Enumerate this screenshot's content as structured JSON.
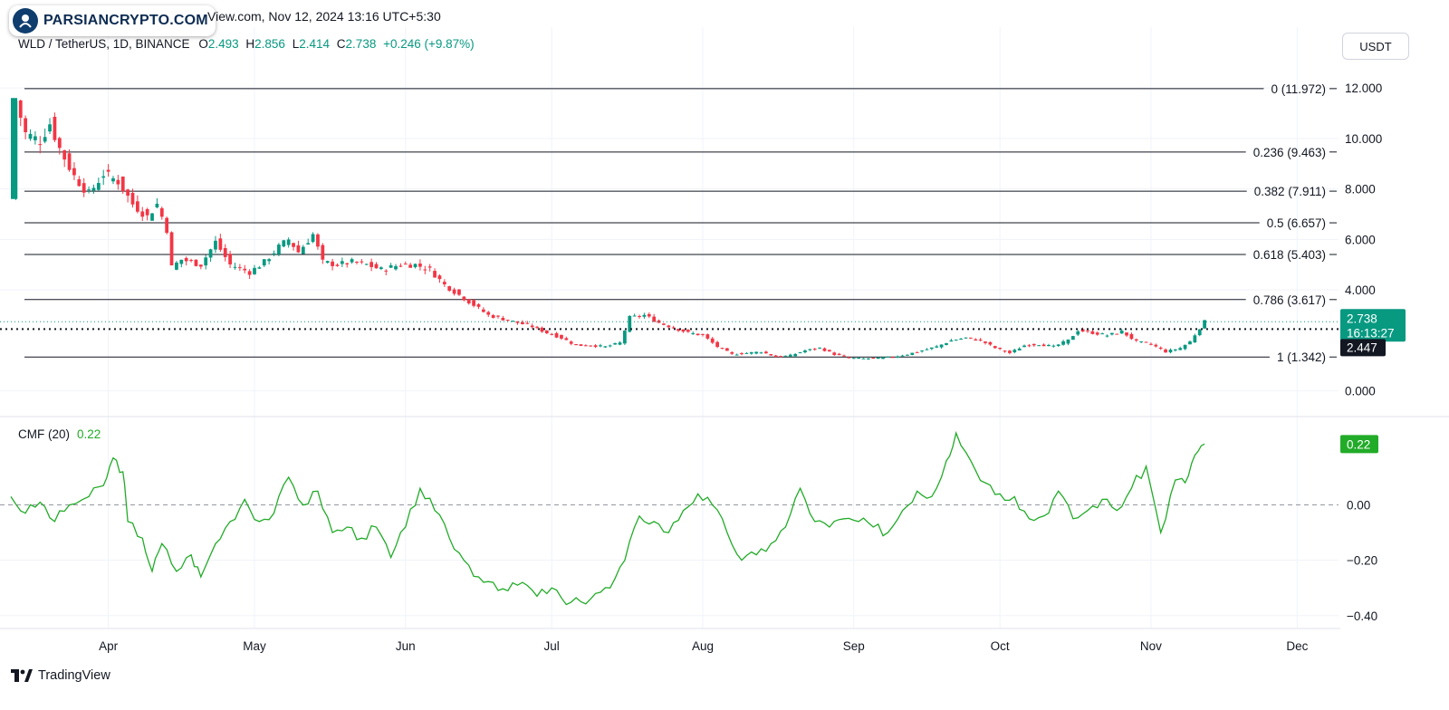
{
  "header": {
    "brand": "PARSIANCRYPTO.COM",
    "published_text": "View.com, Nov 12, 2024 13:16 UTC+5:30"
  },
  "legend": {
    "symbol": "WLD / TetherUS, 1D, BINANCE",
    "open_key": "O",
    "open": "2.493",
    "high_key": "H",
    "high": "2.856",
    "low_key": "L",
    "low": "2.414",
    "close_key": "C",
    "close": "2.738",
    "change": "+0.246 (+9.87%)"
  },
  "currency_button": "USDT",
  "footer": {
    "logo_text": "TradingView"
  },
  "colors": {
    "up": "#089981",
    "down": "#f23645",
    "cmf": "#22ab28",
    "grid": "#f0f3fa",
    "fib_line": "#131722"
  },
  "chart_data": [
    {
      "type": "candlestick",
      "title": "WLD / TetherUS, 1D, BINANCE",
      "x_ticks": [
        "Apr",
        "May",
        "Jun",
        "Jul",
        "Aug",
        "Sep",
        "Oct",
        "Nov",
        "Dec"
      ],
      "x_range": [
        "2024-03-12",
        "2024-12-08"
      ],
      "y_ticks": [
        "12.000",
        "10.000",
        "8.000",
        "6.000",
        "4.000",
        "0.000"
      ],
      "ylim": [
        -0.3,
        12.9
      ],
      "grid": true,
      "current_price_label": "2.738",
      "countdown_label": "16:13:27",
      "dotted_level_label": "2.447",
      "dotted_level": 2.447,
      "fib_levels": [
        {
          "label": "0 (11.972)",
          "value": 11.972
        },
        {
          "label": "0.236 (9.463)",
          "value": 9.463
        },
        {
          "label": "0.382 (7.911)",
          "value": 7.911
        },
        {
          "label": "0.5 (6.657)",
          "value": 6.657
        },
        {
          "label": "0.618 (5.403)",
          "value": 5.403
        },
        {
          "label": "0.786 (3.617)",
          "value": 3.617
        },
        {
          "label": "1 (1.342)",
          "value": 1.342
        }
      ],
      "close_path": [
        [
          "2024-03-12",
          7.6
        ],
        [
          "2024-03-13",
          11.5
        ],
        [
          "2024-03-15",
          10.2
        ],
        [
          "2024-03-18",
          9.9
        ],
        [
          "2024-03-20",
          10.6
        ],
        [
          "2024-03-22",
          9.6
        ],
        [
          "2024-03-25",
          8.5
        ],
        [
          "2024-03-28",
          7.8
        ],
        [
          "2024-03-31",
          8.6
        ],
        [
          "2024-04-03",
          8.3
        ],
        [
          "2024-04-06",
          7.4
        ],
        [
          "2024-04-09",
          6.9
        ],
        [
          "2024-04-11",
          7.4
        ],
        [
          "2024-04-13",
          6.4
        ],
        [
          "2024-04-14",
          4.9
        ],
        [
          "2024-04-16",
          5.2
        ],
        [
          "2024-04-20",
          5.0
        ],
        [
          "2024-04-23",
          5.9
        ],
        [
          "2024-04-26",
          5.0
        ],
        [
          "2024-04-30",
          4.7
        ],
        [
          "2024-05-03",
          5.1
        ],
        [
          "2024-05-06",
          5.7
        ],
        [
          "2024-05-08",
          6.0
        ],
        [
          "2024-05-10",
          5.5
        ],
        [
          "2024-05-13",
          6.2
        ],
        [
          "2024-05-15",
          5.1
        ],
        [
          "2024-05-18",
          5.0
        ],
        [
          "2024-05-21",
          5.1
        ],
        [
          "2024-05-24",
          5.0
        ],
        [
          "2024-05-27",
          4.8
        ],
        [
          "2024-05-31",
          5.0
        ],
        [
          "2024-06-03",
          5.0
        ],
        [
          "2024-06-06",
          4.8
        ],
        [
          "2024-06-09",
          4.2
        ],
        [
          "2024-06-12",
          3.8
        ],
        [
          "2024-06-15",
          3.4
        ],
        [
          "2024-06-18",
          3.0
        ],
        [
          "2024-06-21",
          2.85
        ],
        [
          "2024-06-24",
          2.7
        ],
        [
          "2024-06-27",
          2.55
        ],
        [
          "2024-06-30",
          2.3
        ],
        [
          "2024-07-03",
          2.1
        ],
        [
          "2024-07-06",
          1.8
        ],
        [
          "2024-07-09",
          1.8
        ],
        [
          "2024-07-12",
          1.75
        ],
        [
          "2024-07-15",
          1.9
        ],
        [
          "2024-07-17",
          2.9
        ],
        [
          "2024-07-20",
          3.0
        ],
        [
          "2024-07-23",
          2.7
        ],
        [
          "2024-07-26",
          2.5
        ],
        [
          "2024-07-29",
          2.3
        ],
        [
          "2024-08-01",
          2.2
        ],
        [
          "2024-08-04",
          1.75
        ],
        [
          "2024-08-07",
          1.45
        ],
        [
          "2024-08-10",
          1.5
        ],
        [
          "2024-08-13",
          1.55
        ],
        [
          "2024-08-16",
          1.35
        ],
        [
          "2024-08-19",
          1.4
        ],
        [
          "2024-08-22",
          1.6
        ],
        [
          "2024-08-25",
          1.7
        ],
        [
          "2024-08-28",
          1.45
        ],
        [
          "2024-08-31",
          1.3
        ],
        [
          "2024-09-03",
          1.28
        ],
        [
          "2024-09-06",
          1.3
        ],
        [
          "2024-09-09",
          1.35
        ],
        [
          "2024-09-12",
          1.45
        ],
        [
          "2024-09-15",
          1.6
        ],
        [
          "2024-09-18",
          1.75
        ],
        [
          "2024-09-21",
          2.0
        ],
        [
          "2024-09-24",
          2.1
        ],
        [
          "2024-09-27",
          2.0
        ],
        [
          "2024-09-30",
          1.7
        ],
        [
          "2024-10-03",
          1.5
        ],
        [
          "2024-10-06",
          1.8
        ],
        [
          "2024-10-09",
          1.85
        ],
        [
          "2024-10-12",
          1.75
        ],
        [
          "2024-10-15",
          2.0
        ],
        [
          "2024-10-17",
          2.4
        ],
        [
          "2024-10-20",
          2.3
        ],
        [
          "2024-10-23",
          2.2
        ],
        [
          "2024-10-26",
          2.35
        ],
        [
          "2024-10-29",
          1.95
        ],
        [
          "2024-11-01",
          1.85
        ],
        [
          "2024-11-04",
          1.55
        ],
        [
          "2024-11-07",
          1.7
        ],
        [
          "2024-11-09",
          1.95
        ],
        [
          "2024-11-11",
          2.5
        ],
        [
          "2024-11-12",
          2.738
        ]
      ]
    },
    {
      "type": "line",
      "title": "CMF (20)",
      "current_value": "0.22",
      "y_ticks": [
        "0.00",
        "−0.20",
        "−0.40"
      ],
      "ylim": [
        -0.44,
        0.28
      ],
      "zero_line": "dashed",
      "series": [
        {
          "points": [
            [
              "2024-03-12",
              0.03
            ],
            [
              "2024-03-15",
              -0.03
            ],
            [
              "2024-03-18",
              0.01
            ],
            [
              "2024-03-21",
              -0.06
            ],
            [
              "2024-03-24",
              0.0
            ],
            [
              "2024-03-28",
              0.03
            ],
            [
              "2024-03-31",
              0.07
            ],
            [
              "2024-04-02",
              0.17
            ],
            [
              "2024-04-04",
              0.12
            ],
            [
              "2024-04-05",
              -0.06
            ],
            [
              "2024-04-08",
              -0.12
            ],
            [
              "2024-04-10",
              -0.24
            ],
            [
              "2024-04-12",
              -0.14
            ],
            [
              "2024-04-15",
              -0.24
            ],
            [
              "2024-04-18",
              -0.18
            ],
            [
              "2024-04-20",
              -0.26
            ],
            [
              "2024-04-23",
              -0.14
            ],
            [
              "2024-04-26",
              -0.06
            ],
            [
              "2024-04-29",
              0.02
            ],
            [
              "2024-05-02",
              -0.06
            ],
            [
              "2024-05-05",
              -0.03
            ],
            [
              "2024-05-08",
              0.1
            ],
            [
              "2024-05-11",
              0.0
            ],
            [
              "2024-05-14",
              0.05
            ],
            [
              "2024-05-17",
              -0.1
            ],
            [
              "2024-05-20",
              -0.08
            ],
            [
              "2024-05-23",
              -0.12
            ],
            [
              "2024-05-26",
              -0.08
            ],
            [
              "2024-05-29",
              -0.19
            ],
            [
              "2024-06-01",
              -0.08
            ],
            [
              "2024-06-04",
              0.06
            ],
            [
              "2024-06-07",
              -0.02
            ],
            [
              "2024-06-10",
              -0.12
            ],
            [
              "2024-06-13",
              -0.2
            ],
            [
              "2024-06-16",
              -0.26
            ],
            [
              "2024-06-19",
              -0.28
            ],
            [
              "2024-06-22",
              -0.31
            ],
            [
              "2024-06-25",
              -0.28
            ],
            [
              "2024-06-28",
              -0.33
            ],
            [
              "2024-07-01",
              -0.3
            ],
            [
              "2024-07-04",
              -0.36
            ],
            [
              "2024-07-07",
              -0.35
            ],
            [
              "2024-07-10",
              -0.32
            ],
            [
              "2024-07-13",
              -0.3
            ],
            [
              "2024-07-16",
              -0.2
            ],
            [
              "2024-07-19",
              -0.04
            ],
            [
              "2024-07-22",
              -0.06
            ],
            [
              "2024-07-25",
              -0.1
            ],
            [
              "2024-07-28",
              -0.02
            ],
            [
              "2024-07-31",
              0.04
            ],
            [
              "2024-08-03",
              0.0
            ],
            [
              "2024-08-06",
              -0.1
            ],
            [
              "2024-08-09",
              -0.2
            ],
            [
              "2024-08-12",
              -0.18
            ],
            [
              "2024-08-15",
              -0.14
            ],
            [
              "2024-08-18",
              -0.08
            ],
            [
              "2024-08-21",
              0.06
            ],
            [
              "2024-08-24",
              -0.06
            ],
            [
              "2024-08-27",
              -0.08
            ],
            [
              "2024-08-30",
              -0.05
            ],
            [
              "2024-09-02",
              -0.06
            ],
            [
              "2024-09-05",
              -0.08
            ],
            [
              "2024-09-08",
              -0.1
            ],
            [
              "2024-09-11",
              -0.02
            ],
            [
              "2024-09-14",
              0.05
            ],
            [
              "2024-09-17",
              0.03
            ],
            [
              "2024-09-20",
              0.16
            ],
            [
              "2024-09-22",
              0.26
            ],
            [
              "2024-09-25",
              0.16
            ],
            [
              "2024-09-28",
              0.08
            ],
            [
              "2024-10-01",
              0.04
            ],
            [
              "2024-10-04",
              0.03
            ],
            [
              "2024-10-07",
              -0.05
            ],
            [
              "2024-10-10",
              -0.04
            ],
            [
              "2024-10-13",
              0.05
            ],
            [
              "2024-10-16",
              -0.05
            ],
            [
              "2024-10-19",
              -0.02
            ],
            [
              "2024-10-22",
              0.02
            ],
            [
              "2024-10-25",
              -0.02
            ],
            [
              "2024-10-28",
              0.06
            ],
            [
              "2024-10-31",
              0.14
            ],
            [
              "2024-11-03",
              -0.1
            ],
            [
              "2024-11-06",
              0.09
            ],
            [
              "2024-11-08",
              0.08
            ],
            [
              "2024-11-10",
              0.18
            ],
            [
              "2024-11-12",
              0.22
            ]
          ]
        }
      ]
    }
  ]
}
